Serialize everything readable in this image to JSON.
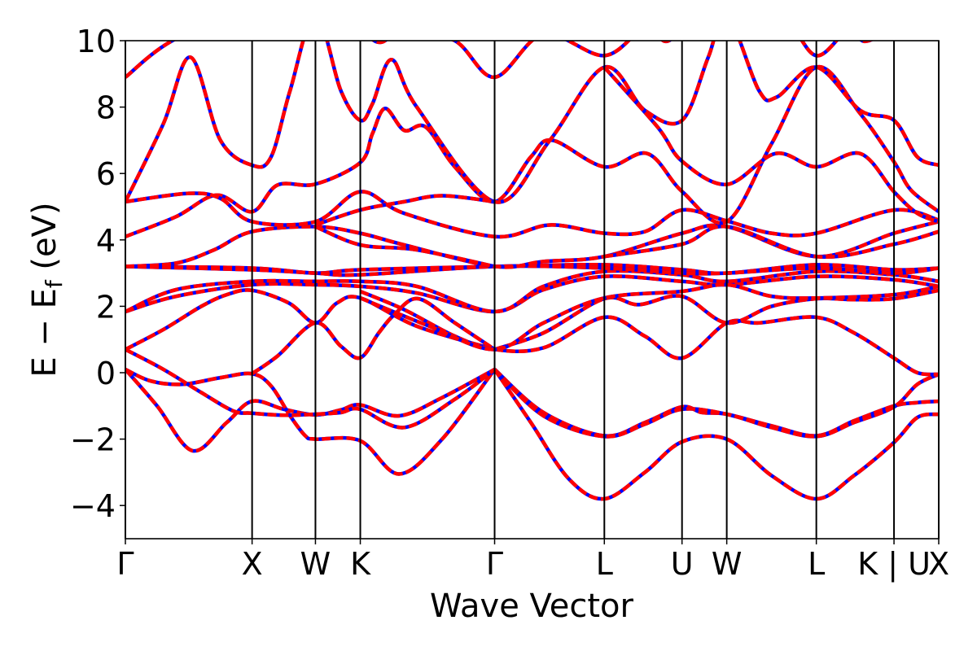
{
  "chart_data": {
    "type": "line",
    "title": "",
    "xlabel": "Wave Vector",
    "ylabel": {
      "main": "E − E",
      "sub": "f",
      "unit": " (eV)"
    },
    "ylim": [
      -5,
      10
    ],
    "xlim": [
      0,
      6.419
    ],
    "yticks": [
      -4,
      -2,
      0,
      2,
      4,
      6,
      8,
      10
    ],
    "ytick_labels": [
      "−4",
      "−2",
      "0",
      "2",
      "4",
      "6",
      "8",
      "10"
    ],
    "kpoints": [
      {
        "label": "Γ",
        "k": 0
      },
      {
        "label": "X",
        "k": 1.0
      },
      {
        "label": "W",
        "k": 1.5
      },
      {
        "label": "K",
        "k": 1.854
      },
      {
        "label": "Γ",
        "k": 2.914
      },
      {
        "label": "L",
        "k": 3.78
      },
      {
        "label": "U",
        "k": 4.393
      },
      {
        "label": "W",
        "k": 4.746
      },
      {
        "label": "L",
        "k": 5.453
      },
      {
        "label": "K | U",
        "k": 6.066
      },
      {
        "label": "X",
        "k": 6.419
      }
    ],
    "grid": false,
    "colors": {
      "line_base": "#0000ff",
      "line_dash": "#ff0000",
      "kline": "#000000"
    },
    "bands": [
      [
        [
          0,
          0.1
        ],
        [
          0.25,
          -1.0
        ],
        [
          0.53,
          -2.35
        ],
        [
          0.8,
          -1.5
        ],
        [
          1,
          -0.86
        ],
        [
          1.25,
          -1.1
        ],
        [
          1.5,
          -1.27
        ],
        [
          1.7,
          -1.12
        ],
        [
          1.854,
          -0.97
        ],
        [
          2.16,
          -1.3
        ],
        [
          2.5,
          -0.75
        ],
        [
          2.914,
          0.1
        ]
      ],
      [
        [
          0,
          0.1
        ],
        [
          0.2,
          -0.25
        ],
        [
          0.45,
          -0.35
        ],
        [
          0.75,
          -0.15
        ],
        [
          1,
          -0.03
        ],
        [
          1.15,
          -0.4
        ],
        [
          1.3,
          -1.3
        ],
        [
          1.42,
          -1.9
        ],
        [
          1.5,
          -2.0
        ],
        [
          1.854,
          -2.05
        ],
        [
          2.16,
          -3.05
        ],
        [
          2.5,
          -2.0
        ],
        [
          2.914,
          0.1
        ]
      ],
      [
        [
          0,
          0.7
        ],
        [
          0.3,
          0.1
        ],
        [
          0.6,
          -0.6
        ],
        [
          0.85,
          -1.15
        ],
        [
          1,
          -1.22
        ],
        [
          1.25,
          -1.28
        ],
        [
          1.5,
          -1.25
        ],
        [
          1.7,
          -1.2
        ],
        [
          1.854,
          -1.1
        ],
        [
          2.2,
          -1.65
        ],
        [
          2.6,
          -0.8
        ],
        [
          2.914,
          0.1
        ]
      ],
      [
        [
          2.914,
          0.1
        ],
        [
          3.3,
          -1.2
        ],
        [
          3.78,
          -1.9
        ],
        [
          4.1,
          -1.5
        ],
        [
          4.393,
          -1.03
        ],
        [
          4.55,
          -1.2
        ],
        [
          4.746,
          -1.25
        ],
        [
          5.1,
          -1.6
        ],
        [
          5.453,
          -1.9
        ],
        [
          5.75,
          -1.45
        ],
        [
          6.066,
          -1.0
        ],
        [
          6.25,
          -0.9
        ],
        [
          6.419,
          -0.86
        ]
      ],
      [
        [
          2.914,
          0.1
        ],
        [
          3.3,
          -1.3
        ],
        [
          3.78,
          -1.92
        ],
        [
          4.1,
          -1.55
        ],
        [
          4.393,
          -1.1
        ],
        [
          4.746,
          -1.25
        ],
        [
          5.1,
          -1.65
        ],
        [
          5.453,
          -1.92
        ],
        [
          5.75,
          -1.5
        ],
        [
          6.066,
          -1.03
        ],
        [
          6.25,
          -0.35
        ],
        [
          6.419,
          -0.05
        ]
      ],
      [
        [
          2.914,
          0.1
        ],
        [
          3.2,
          -1.5
        ],
        [
          3.5,
          -3.2
        ],
        [
          3.78,
          -3.8
        ],
        [
          4.1,
          -3.0
        ],
        [
          4.393,
          -2.08
        ],
        [
          4.746,
          -2.0
        ],
        [
          5.1,
          -3.1
        ],
        [
          5.453,
          -3.8
        ],
        [
          5.75,
          -3.1
        ],
        [
          6.066,
          -2.1
        ],
        [
          6.25,
          -1.35
        ],
        [
          6.419,
          -1.25
        ]
      ],
      [
        [
          0,
          0.7
        ],
        [
          0.3,
          1.3
        ],
        [
          0.6,
          2.0
        ],
        [
          0.8,
          2.35
        ],
        [
          1,
          2.48
        ],
        [
          1.29,
          2.1
        ],
        [
          1.5,
          1.5
        ],
        [
          1.67,
          2.1
        ],
        [
          1.854,
          2.25
        ],
        [
          2.3,
          1.4
        ],
        [
          2.914,
          0.7
        ]
      ],
      [
        [
          1,
          -0.03
        ],
        [
          1.2,
          0.5
        ],
        [
          1.5,
          1.5
        ],
        [
          1.7,
          0.8
        ],
        [
          1.854,
          0.45
        ],
        [
          2.0,
          1.2
        ],
        [
          2.12,
          1.74
        ],
        [
          2.31,
          2.23
        ],
        [
          2.6,
          1.5
        ],
        [
          2.914,
          0.7
        ]
      ],
      [
        [
          1.854,
          2.45
        ],
        [
          2.2,
          1.9
        ],
        [
          2.6,
          1.1
        ],
        [
          2.914,
          0.7
        ],
        [
          3.3,
          0.75
        ],
        [
          3.78,
          1.67
        ],
        [
          4.1,
          1.1
        ],
        [
          4.393,
          0.44
        ],
        [
          4.746,
          1.5
        ],
        [
          5.0,
          1.5
        ],
        [
          5.453,
          1.67
        ],
        [
          5.75,
          1.2
        ],
        [
          6.066,
          0.44
        ],
        [
          6.25,
          0.0
        ],
        [
          6.419,
          -0.05
        ]
      ],
      [
        [
          0,
          1.84
        ],
        [
          0.4,
          2.3
        ],
        [
          1,
          2.65
        ],
        [
          1.5,
          2.65
        ],
        [
          1.854,
          2.6
        ],
        [
          2.3,
          2.4
        ],
        [
          2.914,
          1.84
        ],
        [
          3.3,
          2.5
        ],
        [
          3.78,
          2.9
        ],
        [
          4.393,
          2.75
        ],
        [
          4.746,
          2.65
        ],
        [
          5.453,
          2.9
        ],
        [
          6.066,
          2.8
        ],
        [
          6.419,
          2.6
        ]
      ],
      [
        [
          0,
          1.84
        ],
        [
          0.4,
          2.5
        ],
        [
          1,
          2.75
        ],
        [
          1.5,
          2.75
        ],
        [
          1.854,
          2.75
        ],
        [
          2.3,
          2.6
        ],
        [
          2.914,
          1.84
        ],
        [
          3.3,
          2.6
        ],
        [
          3.78,
          3.05
        ],
        [
          4.393,
          2.95
        ],
        [
          4.746,
          2.75
        ],
        [
          5.453,
          3.05
        ],
        [
          6.066,
          2.95
        ],
        [
          6.419,
          2.75
        ]
      ],
      [
        [
          2.914,
          0.7
        ],
        [
          3.3,
          1.2
        ],
        [
          3.78,
          2.23
        ],
        [
          4.05,
          2.05
        ],
        [
          4.393,
          2.3
        ],
        [
          4.746,
          1.5
        ],
        [
          5.1,
          2.0
        ],
        [
          5.453,
          2.23
        ],
        [
          5.75,
          2.2
        ],
        [
          6.066,
          2.23
        ],
        [
          6.419,
          2.48
        ]
      ],
      [
        [
          1.854,
          2.25
        ],
        [
          2.4,
          1.4
        ],
        [
          2.914,
          0.7
        ],
        [
          3.3,
          1.5
        ],
        [
          3.78,
          2.25
        ],
        [
          4.393,
          2.45
        ],
        [
          4.746,
          2.65
        ],
        [
          5.1,
          2.3
        ],
        [
          5.453,
          2.25
        ],
        [
          6.066,
          2.35
        ],
        [
          6.419,
          2.6
        ]
      ],
      [
        [
          0,
          3.2
        ],
        [
          1,
          3.15
        ],
        [
          1.5,
          3.0
        ],
        [
          1.854,
          3.1
        ],
        [
          2.914,
          3.2
        ],
        [
          3.78,
          3.25
        ],
        [
          4.393,
          3.1
        ],
        [
          4.746,
          3.0
        ],
        [
          5.453,
          3.25
        ],
        [
          6.066,
          3.1
        ],
        [
          6.419,
          3.15
        ]
      ],
      [
        [
          0,
          3.2
        ],
        [
          1,
          3.1
        ],
        [
          1.5,
          3.0
        ],
        [
          1.854,
          2.95
        ],
        [
          2.914,
          3.2
        ],
        [
          3.78,
          3.15
        ],
        [
          4.393,
          3.0
        ],
        [
          4.746,
          3.0
        ],
        [
          5.453,
          3.15
        ],
        [
          6.066,
          3.0
        ],
        [
          6.419,
          3.15
        ]
      ],
      [
        [
          0,
          3.2
        ],
        [
          0.4,
          3.3
        ],
        [
          0.7,
          3.7
        ],
        [
          1,
          4.25
        ],
        [
          1.5,
          4.4
        ],
        [
          1.854,
          4.2
        ],
        [
          2.2,
          3.85
        ],
        [
          2.914,
          3.2
        ],
        [
          3.3,
          3.35
        ],
        [
          3.78,
          3.5
        ],
        [
          4.393,
          4.2
        ],
        [
          4.746,
          4.4
        ],
        [
          5.453,
          3.5
        ],
        [
          6.066,
          4.2
        ],
        [
          6.419,
          4.55
        ]
      ],
      [
        [
          1.5,
          4.4
        ],
        [
          1.854,
          3.85
        ],
        [
          2.3,
          3.7
        ],
        [
          2.914,
          3.2
        ]
      ],
      [
        [
          3.78,
          3.5
        ],
        [
          4.393,
          3.87
        ],
        [
          4.746,
          4.4
        ],
        [
          5.453,
          3.5
        ],
        [
          6.066,
          3.87
        ],
        [
          6.419,
          4.25
        ]
      ],
      [
        [
          0,
          4.1
        ],
        [
          0.4,
          4.7
        ],
        [
          0.72,
          5.35
        ],
        [
          1,
          4.85
        ],
        [
          1.2,
          5.65
        ],
        [
          1.5,
          5.68
        ],
        [
          1.854,
          6.33
        ],
        [
          1.95,
          7.2
        ],
        [
          2.05,
          7.96
        ],
        [
          2.2,
          7.3
        ],
        [
          2.37,
          7.4
        ],
        [
          2.6,
          6.2
        ],
        [
          2.914,
          5.15
        ],
        [
          3.2,
          6.5
        ],
        [
          3.37,
          7.0
        ],
        [
          3.78,
          6.2
        ],
        [
          4.12,
          6.6
        ],
        [
          4.393,
          5.46
        ],
        [
          4.746,
          4.55
        ],
        [
          5.1,
          6.9
        ],
        [
          5.453,
          9.2
        ],
        [
          5.8,
          7.8
        ],
        [
          6.066,
          6.35
        ],
        [
          6.2,
          5.5
        ],
        [
          6.419,
          4.85
        ]
      ],
      [
        [
          0,
          5.15
        ],
        [
          0.5,
          5.4
        ],
        [
          0.75,
          5.25
        ],
        [
          1,
          4.55
        ],
        [
          1.5,
          4.55
        ],
        [
          1.854,
          5.45
        ],
        [
          2.2,
          4.8
        ],
        [
          2.914,
          4.1
        ],
        [
          3.35,
          4.45
        ],
        [
          3.78,
          4.2
        ],
        [
          4.1,
          4.25
        ],
        [
          4.393,
          4.9
        ],
        [
          4.746,
          4.57
        ],
        [
          5.1,
          4.2
        ],
        [
          5.453,
          4.2
        ],
        [
          6.066,
          4.9
        ],
        [
          6.419,
          4.6
        ]
      ],
      [
        [
          0,
          5.15
        ],
        [
          0.3,
          7.5
        ],
        [
          0.515,
          9.5
        ],
        [
          0.75,
          7.0
        ],
        [
          1,
          6.25
        ],
        [
          1.15,
          6.5
        ],
        [
          1.3,
          8.5
        ],
        [
          1.5,
          10.8
        ],
        [
          1.7,
          8.5
        ],
        [
          1.854,
          7.6
        ],
        [
          1.95,
          8.1
        ],
        [
          2.1,
          9.43
        ],
        [
          2.3,
          8.0
        ],
        [
          2.914,
          5.15
        ],
        [
          3.35,
          7.0
        ],
        [
          3.78,
          9.2
        ],
        [
          4.1,
          7.9
        ],
        [
          4.393,
          7.6
        ],
        [
          4.6,
          9.5
        ],
        [
          4.746,
          10.8
        ],
        [
          5.0,
          8.5
        ],
        [
          5.14,
          8.3
        ],
        [
          5.453,
          9.2
        ],
        [
          5.8,
          7.9
        ],
        [
          6.066,
          7.6
        ],
        [
          6.25,
          6.5
        ],
        [
          6.419,
          6.25
        ]
      ],
      [
        [
          3.78,
          9.2
        ],
        [
          4.2,
          7.4
        ],
        [
          4.393,
          6.37
        ],
        [
          4.746,
          5.67
        ],
        [
          5.13,
          6.6
        ],
        [
          5.453,
          6.2
        ],
        [
          5.8,
          6.6
        ],
        [
          6.066,
          5.45
        ],
        [
          6.25,
          4.8
        ],
        [
          6.419,
          4.55
        ]
      ],
      [
        [
          1.5,
          4.45
        ],
        [
          1.854,
          4.9
        ],
        [
          2.2,
          5.15
        ],
        [
          2.5,
          5.33
        ],
        [
          2.914,
          5.15
        ]
      ],
      [
        [
          0,
          8.9
        ],
        [
          0.37,
          10
        ],
        [
          1,
          11
        ],
        [
          1.5,
          11
        ],
        [
          1.854,
          10.3
        ],
        [
          2.01,
          9.95
        ],
        [
          2.2,
          10.3
        ],
        [
          2.6,
          10
        ],
        [
          2.914,
          8.9
        ],
        [
          3.3,
          10.2
        ],
        [
          3.78,
          9.55
        ],
        [
          4.1,
          10.4
        ],
        [
          4.26,
          9.98
        ],
        [
          4.393,
          10.3
        ],
        [
          4.746,
          11
        ],
        [
          5.2,
          10.6
        ],
        [
          5.453,
          9.55
        ],
        [
          5.7,
          10.3
        ],
        [
          5.84,
          9.98
        ],
        [
          6.066,
          10.4
        ],
        [
          6.419,
          11
        ]
      ]
    ]
  }
}
